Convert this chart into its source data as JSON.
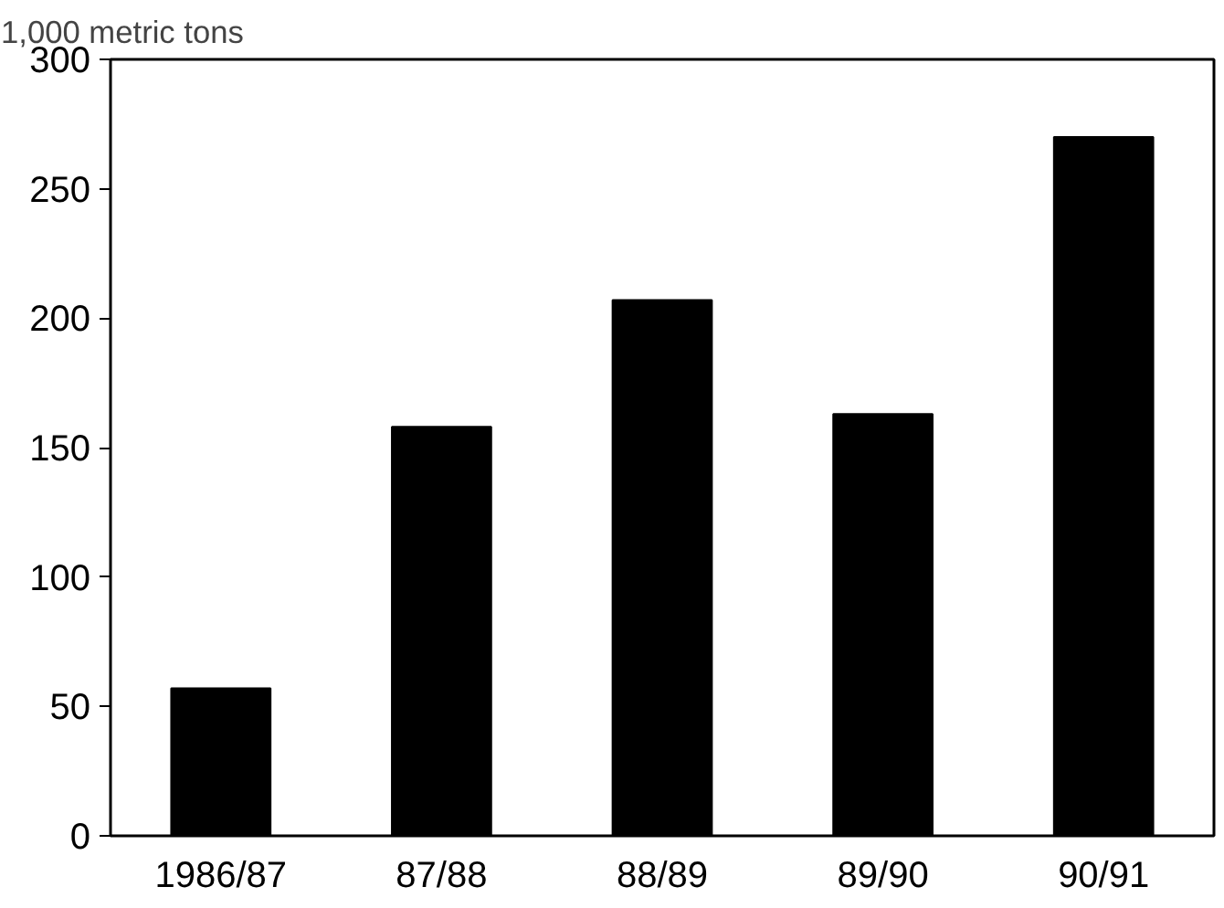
{
  "chart_data": {
    "type": "bar",
    "ylabel": "1,000 metric tons",
    "categories": [
      "1986/87",
      "87/88",
      "88/89",
      "89/90",
      "90/91"
    ],
    "values": [
      57,
      158,
      207,
      163,
      270
    ],
    "color": "#000000",
    "ylim": [
      0,
      300
    ],
    "yticks": [
      0,
      50,
      100,
      150,
      200,
      250,
      300
    ],
    "grid": false
  }
}
